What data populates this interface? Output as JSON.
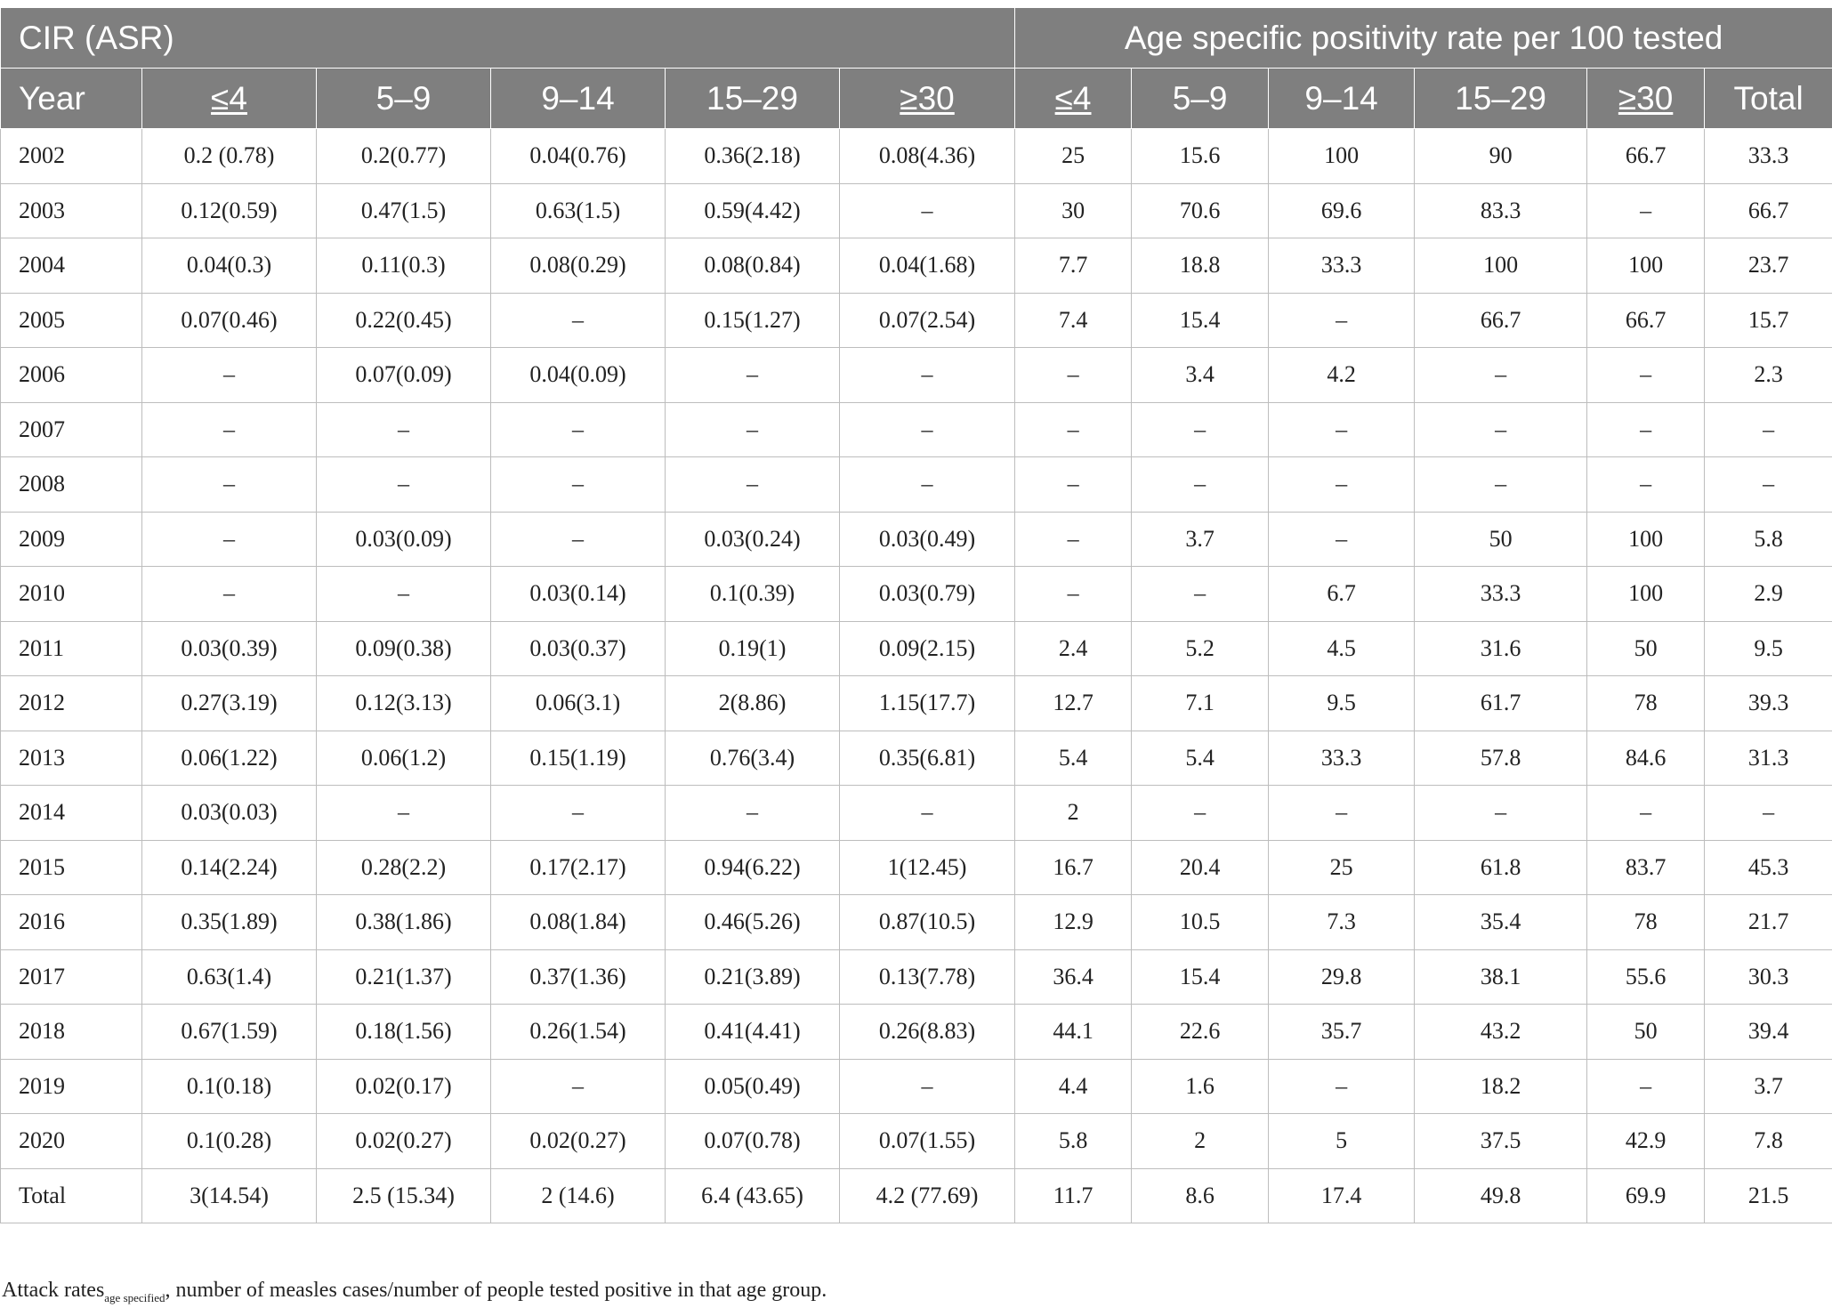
{
  "table": {
    "group_headers": {
      "left": "CIR (ASR)",
      "right": "Age specific positivity rate per 100 tested"
    },
    "columns": [
      "Year",
      "≤4",
      "5–9",
      "9–14",
      "15–29",
      "≥30",
      "≤4",
      "5–9",
      "9–14",
      "15–29",
      "≥30",
      "Total"
    ],
    "rows": [
      [
        "2002",
        "0.2 (0.78)",
        "0.2(0.77)",
        "0.04(0.76)",
        "0.36(2.18)",
        "0.08(4.36)",
        "25",
        "15.6",
        "100",
        "90",
        "66.7",
        "33.3"
      ],
      [
        "2003",
        "0.12(0.59)",
        "0.47(1.5)",
        "0.63(1.5)",
        "0.59(4.42)",
        "–",
        "30",
        "70.6",
        "69.6",
        "83.3",
        "–",
        "66.7"
      ],
      [
        "2004",
        "0.04(0.3)",
        "0.11(0.3)",
        "0.08(0.29)",
        "0.08(0.84)",
        "0.04(1.68)",
        "7.7",
        "18.8",
        "33.3",
        "100",
        "100",
        "23.7"
      ],
      [
        "2005",
        "0.07(0.46)",
        "0.22(0.45)",
        "–",
        "0.15(1.27)",
        "0.07(2.54)",
        "7.4",
        "15.4",
        "–",
        "66.7",
        "66.7",
        "15.7"
      ],
      [
        "2006",
        "–",
        "0.07(0.09)",
        "0.04(0.09)",
        "–",
        "–",
        "–",
        "3.4",
        "4.2",
        "–",
        "–",
        "2.3"
      ],
      [
        "2007",
        "–",
        "–",
        "–",
        "–",
        "–",
        "–",
        "–",
        "–",
        "–",
        "–",
        "–"
      ],
      [
        "2008",
        "–",
        "–",
        "–",
        "–",
        "–",
        "–",
        "–",
        "–",
        "–",
        "–",
        "–"
      ],
      [
        "2009",
        "–",
        "0.03(0.09)",
        "–",
        "0.03(0.24)",
        "0.03(0.49)",
        "–",
        "3.7",
        "–",
        "50",
        "100",
        "5.8"
      ],
      [
        "2010",
        "–",
        "–",
        "0.03(0.14)",
        "0.1(0.39)",
        "0.03(0.79)",
        "–",
        "–",
        "6.7",
        "33.3",
        "100",
        "2.9"
      ],
      [
        "2011",
        "0.03(0.39)",
        "0.09(0.38)",
        "0.03(0.37)",
        "0.19(1)",
        "0.09(2.15)",
        "2.4",
        "5.2",
        "4.5",
        "31.6",
        "50",
        "9.5"
      ],
      [
        "2012",
        "0.27(3.19)",
        "0.12(3.13)",
        "0.06(3.1)",
        "2(8.86)",
        "1.15(17.7)",
        "12.7",
        "7.1",
        "9.5",
        "61.7",
        "78",
        "39.3"
      ],
      [
        "2013",
        "0.06(1.22)",
        "0.06(1.2)",
        "0.15(1.19)",
        "0.76(3.4)",
        "0.35(6.81)",
        "5.4",
        "5.4",
        "33.3",
        "57.8",
        "84.6",
        "31.3"
      ],
      [
        "2014",
        "0.03(0.03)",
        "–",
        "–",
        "–",
        "–",
        "2",
        "–",
        "–",
        "–",
        "–",
        "–"
      ],
      [
        "2015",
        "0.14(2.24)",
        "0.28(2.2)",
        "0.17(2.17)",
        "0.94(6.22)",
        "1(12.45)",
        "16.7",
        "20.4",
        "25",
        "61.8",
        "83.7",
        "45.3"
      ],
      [
        "2016",
        "0.35(1.89)",
        "0.38(1.86)",
        "0.08(1.84)",
        "0.46(5.26)",
        "0.87(10.5)",
        "12.9",
        "10.5",
        "7.3",
        "35.4",
        "78",
        "21.7"
      ],
      [
        "2017",
        "0.63(1.4)",
        "0.21(1.37)",
        "0.37(1.36)",
        "0.21(3.89)",
        "0.13(7.78)",
        "36.4",
        "15.4",
        "29.8",
        "38.1",
        "55.6",
        "30.3"
      ],
      [
        "2018",
        "0.67(1.59)",
        "0.18(1.56)",
        "0.26(1.54)",
        "0.41(4.41)",
        "0.26(8.83)",
        "44.1",
        "22.6",
        "35.7",
        "43.2",
        "50",
        "39.4"
      ],
      [
        "2019",
        "0.1(0.18)",
        "0.02(0.17)",
        "–",
        "0.05(0.49)",
        "–",
        "4.4",
        "1.6",
        "–",
        "18.2",
        "–",
        "3.7"
      ],
      [
        "2020",
        "0.1(0.28)",
        "0.02(0.27)",
        "0.02(0.27)",
        "0.07(0.78)",
        "0.07(1.55)",
        "5.8",
        "2",
        "5",
        "37.5",
        "42.9",
        "7.8"
      ],
      [
        "Total",
        "3(14.54)",
        "2.5 (15.34)",
        "2 (14.6)",
        "6.4 (43.65)",
        "4.2 (77.69)",
        "11.7",
        "8.6",
        "17.4",
        "49.8",
        "69.9",
        "21.5"
      ]
    ]
  },
  "footnote": {
    "prefix": "Attack rates",
    "subscript": "age specified",
    "suffix": ", number of measles cases/number of people tested positive in that age group."
  }
}
